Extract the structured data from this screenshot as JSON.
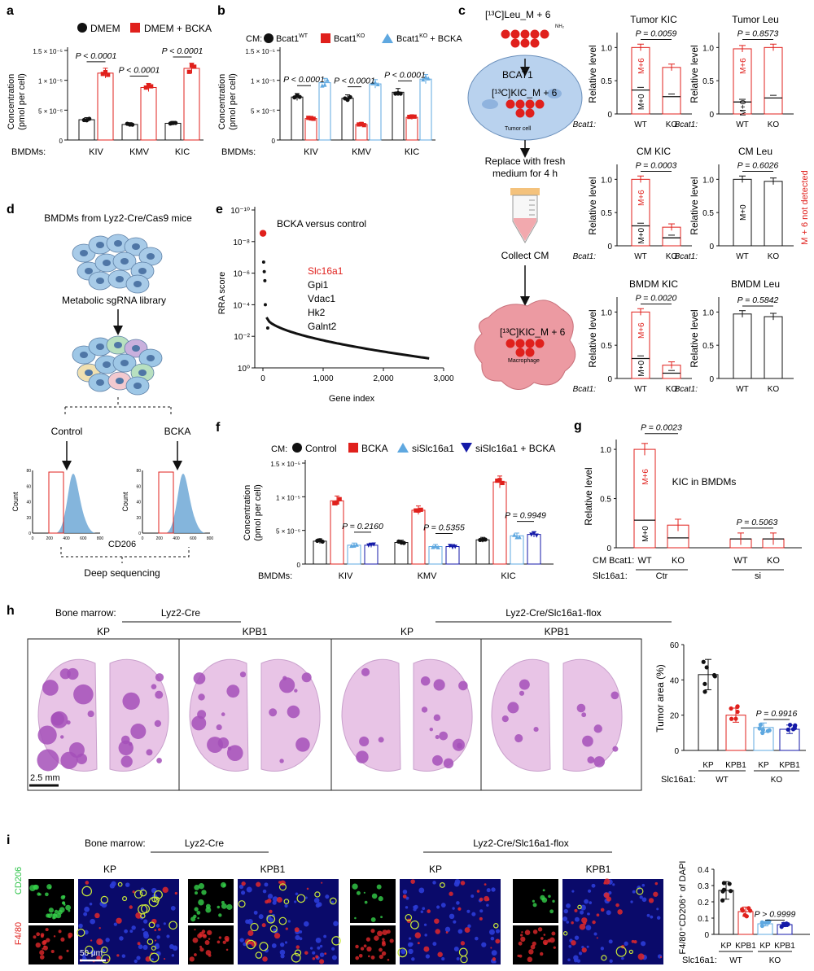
{
  "colors": {
    "black": "#111111",
    "red": "#e0201c",
    "blue": "#5fa8e0",
    "navy": "#141aa8",
    "he_purple": "#a450b8",
    "he_pink": "#e8c4e6",
    "tumor_cell": "#b9d2ee",
    "macrophage": "#ec9aa2"
  },
  "icons": [
    "tube-icon",
    "cell-icon",
    "cell-cluster-icon",
    "arrow-down-icon"
  ],
  "panel_a": {
    "label": "a",
    "legend": [
      "DMEM",
      "DMEM + BCKA"
    ],
    "ylabel": [
      "Concentration",
      "(pmol per cell)"
    ],
    "yticks": [
      "0",
      "5 × 10⁻⁶",
      "1 × 10⁻⁵",
      "1.5 × 10⁻⁵"
    ],
    "xprefix": "BMDMs:",
    "pvals": [
      "P < 0.0001",
      "P < 0.0001",
      "P < 0.0001"
    ]
  },
  "panel_b": {
    "label": "b",
    "legend_prefix": "CM:",
    "legend": [
      "Bcat1",
      "Bcat1",
      "Bcat1",
      "+ BCKA"
    ],
    "legend_sup": [
      "WT",
      "KO",
      "KO"
    ],
    "ylabel": [
      "Concentration",
      "(pmol per cell)"
    ],
    "yticks": [
      "0",
      "5 × 10⁻⁶",
      "1 × 10⁻⁵",
      "1.5 × 10⁻⁵"
    ],
    "xprefix": "BMDMs:",
    "pvals": [
      "P < 0.0001",
      "P < 0.0001",
      "P < 0.0001"
    ]
  },
  "panel_c": {
    "label": "c",
    "diagram": {
      "top": "[¹³C]Leu_M + 6",
      "nh2": "NH₂",
      "enzyme": "BCAT1",
      "kic": "[¹³C]KIC_M + 6",
      "tumor": "Tumor cell",
      "replace": [
        "Replace with fresh",
        "medium for 4 h"
      ],
      "collect": "Collect CM",
      "kic2": "[¹³C]KIC_M + 6",
      "macro": "Macrophage"
    },
    "ylabel": "Relative level",
    "yticks": [
      "0",
      "0.5",
      "1.0"
    ],
    "xprefix": "Bcat1:",
    "xcats": [
      "WT",
      "KO"
    ],
    "mlabels": {
      "m6": "M+6",
      "m0": "M+0"
    },
    "not_detected": "M + 6 not detected",
    "subplots": [
      {
        "title": "Tumor KIC",
        "p": "P = 0.0059"
      },
      {
        "title": "Tumor Leu",
        "p": "P = 0.8573"
      },
      {
        "title": "CM  KIC",
        "p": "P = 0.0003"
      },
      {
        "title": "CM Leu",
        "p": "P = 0.6026"
      },
      {
        "title": "BMDM KIC",
        "p": "P = 0.0020"
      },
      {
        "title": "BMDM Leu",
        "p": "P = 0.5842"
      }
    ]
  },
  "panel_d": {
    "label": "d",
    "title": "BMDMs from Lyz2-Cre/Cas9 mice",
    "library": "Metabolic sgRNA library",
    "control": "Control",
    "bcka": "BCKA",
    "ylabel": "Count",
    "yticks": [
      "0",
      "20",
      "40",
      "60",
      "80"
    ],
    "xticks": [
      "0",
      "200",
      "400",
      "600",
      "800"
    ],
    "xlabel": "CD206",
    "seq": "Deep sequencing"
  },
  "panel_e": {
    "label": "e",
    "title": "BCKA versus control",
    "genes": [
      "Slc16a1",
      "Gpi1",
      "Vdac1",
      "Hk2",
      "Galnt2"
    ],
    "ylabel": "RRA score",
    "yticks": [
      "10⁻¹⁰",
      "10⁻⁸",
      "10⁻⁶",
      "10⁻⁴",
      "10⁻²",
      "10⁰"
    ],
    "xticks": [
      "0",
      "1,000",
      "2,000",
      "3,000"
    ],
    "xlabel": "Gene index"
  },
  "panel_f": {
    "label": "f",
    "legend_prefix": "CM:",
    "legend": [
      "Control",
      "BCKA",
      "siSlc16a1",
      "siSlc16a1 + BCKA"
    ],
    "ylabel": [
      "Concentration",
      "(pmol per cell)"
    ],
    "yticks": [
      "0",
      "5 × 10⁻⁶",
      "1 × 10⁻⁵",
      "1.5 × 10⁻⁵"
    ],
    "xprefix": "BMDMs:",
    "pvals": [
      "P = 0.2160",
      "P = 0.5355",
      "P = 0.9949"
    ]
  },
  "panel_g": {
    "label": "g",
    "title": "KIC in BMDMs",
    "ylabel": "Relative level",
    "yticks": [
      "0",
      "0.5",
      "1.0"
    ],
    "pvals": [
      "P = 0.0023",
      "P = 0.5063"
    ],
    "row1_label": "CM Bcat1:",
    "row1": [
      "WT",
      "KO",
      "WT",
      "KO"
    ],
    "row2_label": "Slc16a1:",
    "row2": [
      "Ctr",
      "si"
    ],
    "mlabels": {
      "m6": "M+6",
      "m0": "M+0"
    }
  },
  "panel_h": {
    "label": "h",
    "bm_label": "Bone marrow:",
    "group1": "Lyz2-Cre",
    "group2": "Lyz2-Cre/Slc16a1-flox",
    "images": [
      "KP",
      "KPB1",
      "KP",
      "KPB1"
    ],
    "scale": "2.5 mm",
    "ylabel": "Tumor area (%)",
    "yticks": [
      "0",
      "20",
      "40",
      "60"
    ],
    "pval": "P = 0.9916",
    "xcats": [
      "KP",
      "KPB1",
      "KP",
      "KPB1"
    ],
    "geno_label": "Slc16a1:",
    "geno": [
      "WT",
      "KO"
    ]
  },
  "panel_i": {
    "label": "i",
    "bm_label": "Bone marrow:",
    "group1": "Lyz2-Cre",
    "group2": "Lyz2-Cre/Slc16a1-flox",
    "images": [
      "KP",
      "KPB1",
      "KP",
      "KPB1"
    ],
    "row_labels": [
      "CD206",
      "F4/80"
    ],
    "scale": "50 μm",
    "ylabel": "F4/80⁺CD206⁺ of DAPI",
    "yticks": [
      "0",
      "0.1",
      "0.2",
      "0.3",
      "0.4"
    ],
    "pval": "P > 0.9999",
    "xcats": [
      "KP",
      "KPB1",
      "KP",
      "KPB1"
    ],
    "geno_label": "Slc16a1:",
    "geno": [
      "WT",
      "KO"
    ]
  },
  "chart_data": [
    {
      "panel": "a",
      "type": "bar",
      "categories": [
        "KIV",
        "KMV",
        "KIC"
      ],
      "ylim": [
        0,
        1.5e-05
      ],
      "series": [
        {
          "name": "DMEM",
          "values": [
            3.4e-06,
            2.6e-06,
            2.8e-06
          ]
        },
        {
          "name": "DMEM + BCKA",
          "values": [
            1.12e-05,
            8.8e-06,
            1.2e-05
          ]
        }
      ]
    },
    {
      "panel": "b",
      "type": "bar",
      "categories": [
        "KIV",
        "KMV",
        "KIC"
      ],
      "ylim": [
        0,
        1.5e-05
      ],
      "series": [
        {
          "name": "Bcat1 WT",
          "values": [
            7.2e-06,
            7e-06,
            8e-06
          ]
        },
        {
          "name": "Bcat1 KO",
          "values": [
            3.6e-06,
            2.6e-06,
            3.8e-06
          ]
        },
        {
          "name": "Bcat1 KO + BCKA",
          "values": [
            9.6e-06,
            9.4e-06,
            1.02e-05
          ]
        }
      ]
    },
    {
      "panel": "c-Tumor KIC",
      "type": "bar",
      "categories": [
        "WT",
        "KO"
      ],
      "ylim": [
        0,
        1.2
      ],
      "series": [
        {
          "name": "M+6",
          "values": [
            1.0,
            0.7
          ]
        },
        {
          "name": "M+0",
          "values": [
            0.36,
            0.26
          ]
        }
      ]
    },
    {
      "panel": "c-Tumor Leu",
      "type": "bar",
      "categories": [
        "WT",
        "KO"
      ],
      "ylim": [
        0,
        1.2
      ],
      "series": [
        {
          "name": "M+6",
          "values": [
            0.98,
            1.0
          ]
        },
        {
          "name": "M+0",
          "values": [
            0.18,
            0.24
          ]
        }
      ]
    },
    {
      "panel": "c-CM KIC",
      "type": "bar",
      "categories": [
        "WT",
        "KO"
      ],
      "ylim": [
        0,
        1.2
      ],
      "series": [
        {
          "name": "M+6",
          "values": [
            1.0,
            0.28
          ]
        },
        {
          "name": "M+0",
          "values": [
            0.3,
            0.12
          ]
        }
      ]
    },
    {
      "panel": "c-CM Leu",
      "type": "bar",
      "categories": [
        "WT",
        "KO"
      ],
      "ylim": [
        0,
        1.2
      ],
      "series": [
        {
          "name": "M+0",
          "values": [
            1.0,
            0.97
          ]
        }
      ]
    },
    {
      "panel": "c-BMDM KIC",
      "type": "bar",
      "categories": [
        "WT",
        "KO"
      ],
      "ylim": [
        0,
        1.2
      ],
      "series": [
        {
          "name": "M+6",
          "values": [
            1.0,
            0.2
          ]
        },
        {
          "name": "M+0",
          "values": [
            0.3,
            0.08
          ]
        }
      ]
    },
    {
      "panel": "c-BMDM Leu",
      "type": "bar",
      "categories": [
        "WT",
        "KO"
      ],
      "ylim": [
        0,
        1.2
      ],
      "series": [
        {
          "name": "M+0",
          "values": [
            0.97,
            0.93
          ]
        }
      ]
    },
    {
      "panel": "e",
      "type": "scatter",
      "x": [
        1,
        12,
        22,
        32,
        40,
        80,
        200,
        600,
        1000,
        1500,
        2000,
        2500,
        2800
      ],
      "y": [
        3e-09,
        2e-07,
        8e-07,
        3e-06,
        0.0001,
        0.003,
        0.006,
        0.015,
        0.03,
        0.06,
        0.12,
        0.2,
        0.3
      ],
      "xlim": [
        0,
        3000
      ],
      "yscale": "log"
    },
    {
      "panel": "f",
      "type": "bar",
      "categories": [
        "KIV",
        "KMV",
        "KIC"
      ],
      "ylim": [
        0,
        1.5e-05
      ],
      "series": [
        {
          "name": "Control",
          "values": [
            3.4e-06,
            3.2e-06,
            3.6e-06
          ]
        },
        {
          "name": "BCKA",
          "values": [
            9.4e-06,
            8e-06,
            1.22e-05
          ]
        },
        {
          "name": "siSlc16a1",
          "values": [
            2.8e-06,
            2.6e-06,
            4.2e-06
          ]
        },
        {
          "name": "siSlc16a1 + BCKA",
          "values": [
            2.8e-06,
            2.6e-06,
            4.4e-06
          ]
        }
      ]
    },
    {
      "panel": "g",
      "type": "bar",
      "categories": [
        "WT Ctr",
        "KO Ctr",
        "WT si",
        "KO si"
      ],
      "ylim": [
        0,
        1.1
      ],
      "series": [
        {
          "name": "M+6",
          "values": [
            1.0,
            0.23,
            0.09,
            0.09
          ]
        },
        {
          "name": "M+0",
          "values": [
            0.28,
            0.1,
            0.09,
            0.09
          ]
        }
      ]
    },
    {
      "panel": "h",
      "type": "bar",
      "categories": [
        "KP WT",
        "KPB1 WT",
        "KP KO",
        "KPB1 KO"
      ],
      "ylim": [
        0,
        60
      ],
      "values": [
        43,
        20,
        13,
        12
      ]
    },
    {
      "panel": "i",
      "type": "bar",
      "categories": [
        "KP WT",
        "KPB1 WT",
        "KP KO",
        "KPB1 KO"
      ],
      "ylim": [
        0,
        0.4
      ],
      "values": [
        0.27,
        0.14,
        0.065,
        0.06
      ]
    }
  ]
}
